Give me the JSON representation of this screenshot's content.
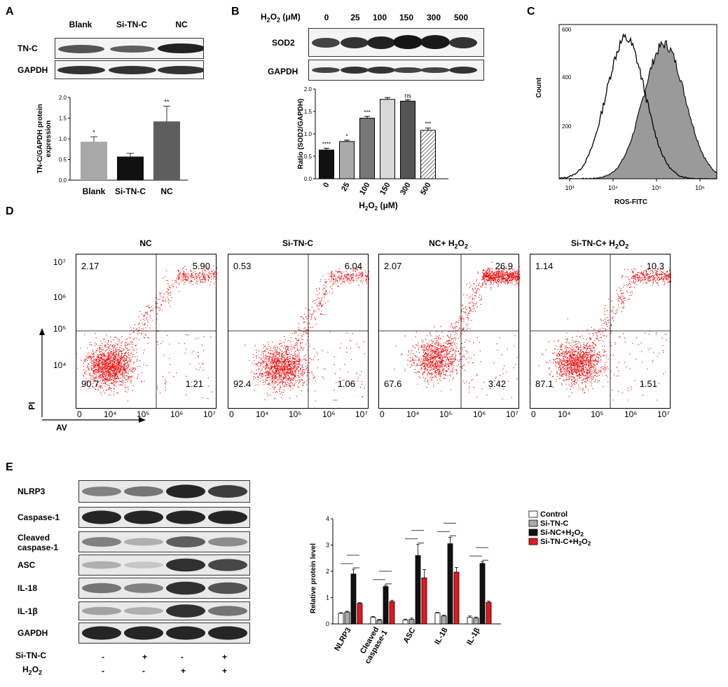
{
  "panel_letters": {
    "a": "A",
    "b": "B",
    "c": "C",
    "d": "D",
    "e": "E"
  },
  "panelA": {
    "lanes": [
      "Blank",
      "Si-TN-C",
      "NC"
    ],
    "rows": [
      "TN-C",
      "GAPDH"
    ],
    "ylabel_line1": "TN-C/GAPDH protein",
    "ylabel_line2": "expression",
    "yticks": [
      "0.0",
      "0.5",
      "1.0",
      "1.5",
      "2.0"
    ]
  },
  "panelB": {
    "conc_label": "H2O2 (μM)",
    "concs": [
      "0",
      "25",
      "100",
      "150",
      "300",
      "500"
    ],
    "rows": [
      "SOD2",
      "GAPDH"
    ],
    "ylabel": "Ratio (SOD2/GAPDH)",
    "xlabel": "H2O2 (μM)",
    "yticks": [
      "0.0",
      "0.5",
      "1.0",
      "1.5",
      "2.0"
    ]
  },
  "panelC": {
    "ylabel": "Count",
    "xlabel": "ROS-FITC",
    "yticks": [
      "600",
      "400",
      "200"
    ],
    "xticks": [
      "10³",
      "10⁴",
      "10⁵",
      "10⁶"
    ]
  },
  "panelD": {
    "plots": [
      {
        "title": "NC",
        "ul": "2.17",
        "ur": "5.90",
        "ll": "90.7",
        "lr": "1.21"
      },
      {
        "title": "Si-TN-C",
        "ul": "0.53",
        "ur": "6.04",
        "ll": "92.4",
        "lr": "1.06"
      },
      {
        "title": "NC+ H2O2",
        "ul": "2.07",
        "ur": "26.9",
        "ll": "67.6",
        "lr": "3.42"
      },
      {
        "title": "Si-TN-C+ H2O2",
        "ul": "1.14",
        "ur": "10.3",
        "ll": "87.1",
        "lr": "1.51"
      }
    ],
    "yticks": [
      "10⁷",
      "10⁶",
      "10⁵",
      "10⁴"
    ],
    "xticks": [
      "0",
      "10⁴",
      "10⁵",
      "10⁶",
      "10⁷"
    ],
    "ylabel": "PI",
    "xlabel": "AV"
  },
  "panelE": {
    "blot_rows": [
      "NLRP3",
      "Caspase-1",
      "Cleaved caspase-1",
      "ASC",
      "IL-18",
      "IL-1β",
      "GAPDH"
    ],
    "treat_rows": [
      {
        "label": "Si-TN-C",
        "signs": [
          "-",
          "+",
          "-",
          "+"
        ]
      },
      {
        "label": "H2O2",
        "signs": [
          "-",
          "-",
          "+",
          "+"
        ]
      }
    ],
    "ylabel": "Relative protein level",
    "yticks": [
      "0",
      "1",
      "2",
      "3",
      "4"
    ],
    "legend": [
      "Control",
      "Si-TN-C",
      "Si-NC+H2O2",
      "Si-TN-C+H2O2"
    ]
  },
  "chart_data": [
    {
      "type": "bar",
      "categories": [
        "Blank",
        "Si-TN-C",
        "NC"
      ],
      "values": [
        0.93,
        0.57,
        1.42
      ],
      "errors": [
        0.12,
        0.08,
        0.37
      ],
      "significance": [
        "*",
        "",
        "**"
      ],
      "colors": [
        "#a8a8a8",
        "#111111",
        "#5e5e5e"
      ],
      "ylim": [
        0,
        2.0
      ]
    },
    {
      "type": "bar",
      "categories": [
        "0",
        "25",
        "100",
        "150",
        "300",
        "500"
      ],
      "values": [
        0.64,
        0.83,
        1.35,
        1.77,
        1.73,
        1.08
      ],
      "errors": [
        0.04,
        0.03,
        0.04,
        0.04,
        0.03,
        0.05
      ],
      "significance": [
        "****",
        "*",
        "***",
        "",
        "ns",
        "***"
      ],
      "colors": [
        "#111111",
        "#aaaaaa",
        "#777777",
        "#d8d8d8",
        "#555555",
        "hatch"
      ],
      "ylim": [
        0,
        2.0
      ]
    },
    {
      "type": "bar",
      "categories": [
        "NLRP3",
        "Cleaved caspase-1",
        "ASC",
        "IL-18",
        "IL-1β"
      ],
      "series": [
        {
          "name": "Control",
          "values": [
            0.4,
            0.25,
            0.15,
            0.42,
            0.25
          ],
          "errors": [
            0.03,
            0.03,
            0.03,
            0.02,
            0.05
          ],
          "color": "#ffffff"
        },
        {
          "name": "Si-TN-C",
          "values": [
            0.45,
            0.15,
            0.17,
            0.3,
            0.22
          ],
          "errors": [
            0.03,
            0.02,
            0.05,
            0.03,
            0.04
          ],
          "color": "#aaaaaa"
        },
        {
          "name": "Si-NC+H2O2",
          "values": [
            1.9,
            1.42,
            2.6,
            3.05,
            2.3
          ],
          "errors": [
            0.18,
            0.05,
            0.42,
            0.25,
            0.07
          ],
          "color": "#111111"
        },
        {
          "name": "Si-TN-C+H2O2",
          "values": [
            0.78,
            0.85,
            1.75,
            1.97,
            0.82
          ],
          "errors": [
            0.03,
            0.05,
            0.32,
            0.18,
            0.05
          ],
          "color": "#e8161b"
        }
      ],
      "ylim": [
        0,
        4
      ]
    }
  ]
}
